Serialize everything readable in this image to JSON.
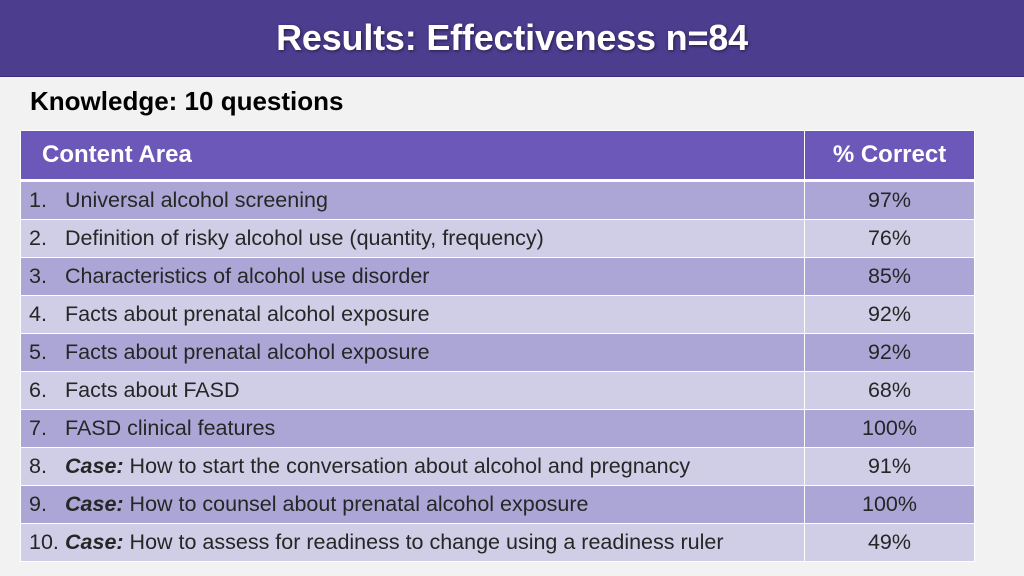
{
  "header": {
    "title": "Results: Effectiveness n=84"
  },
  "subtitle": "Knowledge: 10 questions",
  "table": {
    "col_area": "Content Area",
    "col_pct": "% Correct",
    "rows": [
      {
        "num": "1.",
        "case": "",
        "text": "Universal alcohol screening",
        "value": "97%"
      },
      {
        "num": "2.",
        "case": "",
        "text": "Definition of risky alcohol use (quantity, frequency)",
        "value": "76%"
      },
      {
        "num": "3.",
        "case": "",
        "text": "Characteristics of alcohol use disorder",
        "value": "85%"
      },
      {
        "num": "4.",
        "case": "",
        "text": "Facts about prenatal alcohol exposure",
        "value": "92%"
      },
      {
        "num": "5.",
        "case": "",
        "text": "Facts about prenatal alcohol exposure",
        "value": "92%"
      },
      {
        "num": "6.",
        "case": "",
        "text": "Facts about FASD",
        "value": "68%"
      },
      {
        "num": "7.",
        "case": "",
        "text": "FASD clinical features",
        "value": "100%"
      },
      {
        "num": "8.",
        "case": "Case:",
        "text": " How to start the conversation about alcohol and pregnancy",
        "value": "91%"
      },
      {
        "num": "9.",
        "case": "Case:",
        "text": " How to counsel about prenatal alcohol exposure",
        "value": "100%"
      },
      {
        "num": "10.",
        "case": "Case:",
        "text": " How to assess for readiness to change using a readiness ruler",
        "value": "49%"
      }
    ]
  },
  "colors": {
    "title_bar": "#4d3d8f",
    "header_row": "#6b58b8",
    "row_odd": "#aca6d6",
    "row_even": "#d0cde6",
    "background": "#f2f2f2"
  }
}
